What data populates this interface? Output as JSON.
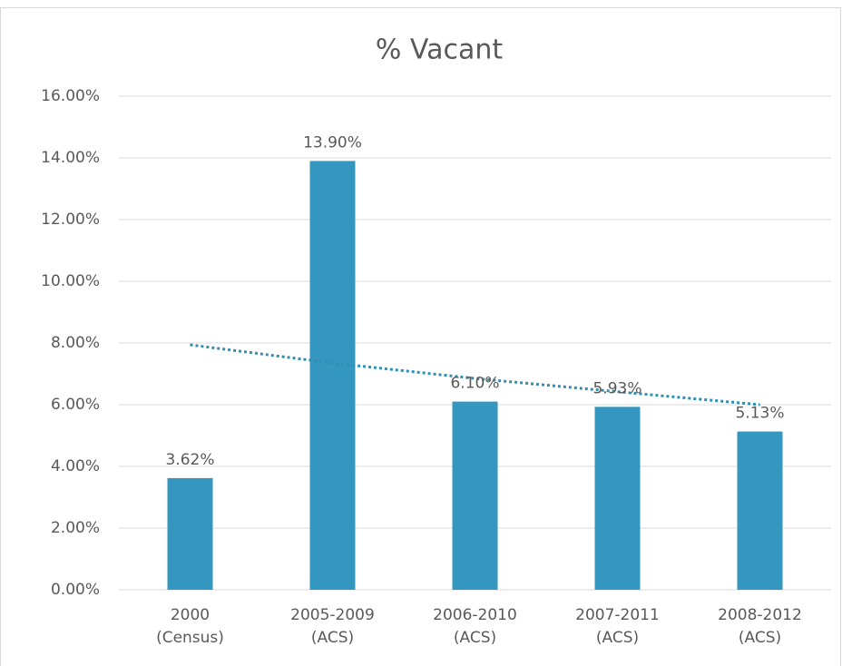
{
  "chart_data": {
    "type": "bar",
    "title": "% Vacant",
    "categories": [
      [
        "2000",
        "(Census)"
      ],
      [
        "2005-2009",
        "(ACS)"
      ],
      [
        "2006-2010",
        "(ACS)"
      ],
      [
        "2007-2011",
        "(ACS)"
      ],
      [
        "2008-2012",
        "(ACS)"
      ]
    ],
    "values": [
      3.62,
      13.9,
      6.1,
      5.93,
      5.13
    ],
    "value_labels": [
      "3.62%",
      "13.90%",
      "6.10%",
      "5.93%",
      "5.13%"
    ],
    "color": "#3497c0",
    "trendline": {
      "values": [
        7.94,
        7.35,
        6.85,
        6.42,
        6.0
      ],
      "color": "#2f8fb0"
    },
    "ylim": [
      0,
      16
    ],
    "yticks": [
      {
        "value": 0,
        "label": "0.00%"
      },
      {
        "value": 2,
        "label": "2.00%"
      },
      {
        "value": 4,
        "label": "4.00%"
      },
      {
        "value": 6,
        "label": "6.00%"
      },
      {
        "value": 8,
        "label": "8.00%"
      },
      {
        "value": 10,
        "label": "10.00%"
      },
      {
        "value": 12,
        "label": "12.00%"
      },
      {
        "value": 14,
        "label": "14.00%"
      },
      {
        "value": 16,
        "label": "16.00%"
      }
    ],
    "grid": true
  }
}
